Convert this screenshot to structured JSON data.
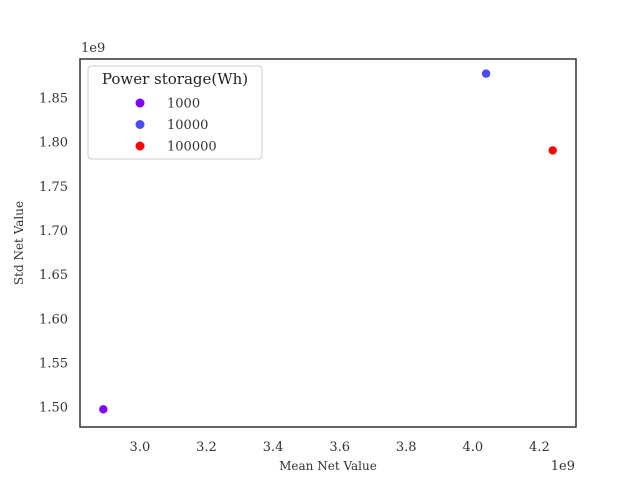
{
  "chart_data": {
    "type": "scatter",
    "title": "",
    "xlabel": "Mean Net Value",
    "ylabel": "Std Net Value",
    "x_offset_label": "1e9",
    "y_offset_label": "1e9",
    "xlim": [
      2.82,
      4.31
    ],
    "ylim": [
      1.477,
      1.8935
    ],
    "x_ticks": [
      3.0,
      3.2,
      3.4,
      3.6,
      3.8,
      4.0,
      4.2
    ],
    "x_tick_labels": [
      "3.0",
      "3.2",
      "3.4",
      "3.6",
      "3.8",
      "4.0",
      "4.2"
    ],
    "y_ticks": [
      1.5,
      1.55,
      1.6,
      1.65,
      1.7,
      1.75,
      1.8,
      1.85
    ],
    "y_tick_labels": [
      "1.50",
      "1.55",
      "1.60",
      "1.65",
      "1.70",
      "1.75",
      "1.80",
      "1.85"
    ],
    "grid": false,
    "legend": {
      "title": "Power storage(Wh)",
      "placement": "top-left"
    },
    "series": [
      {
        "name": "1000",
        "color": "#8000ff",
        "x": [
          2.89
        ],
        "y": [
          1.497
        ]
      },
      {
        "name": "10000",
        "color": "#4b4bf5",
        "x": [
          4.04
        ],
        "y": [
          1.877
        ]
      },
      {
        "name": "100000",
        "color": "#ff0000",
        "x": [
          4.24
        ],
        "y": [
          1.79
        ]
      }
    ]
  }
}
